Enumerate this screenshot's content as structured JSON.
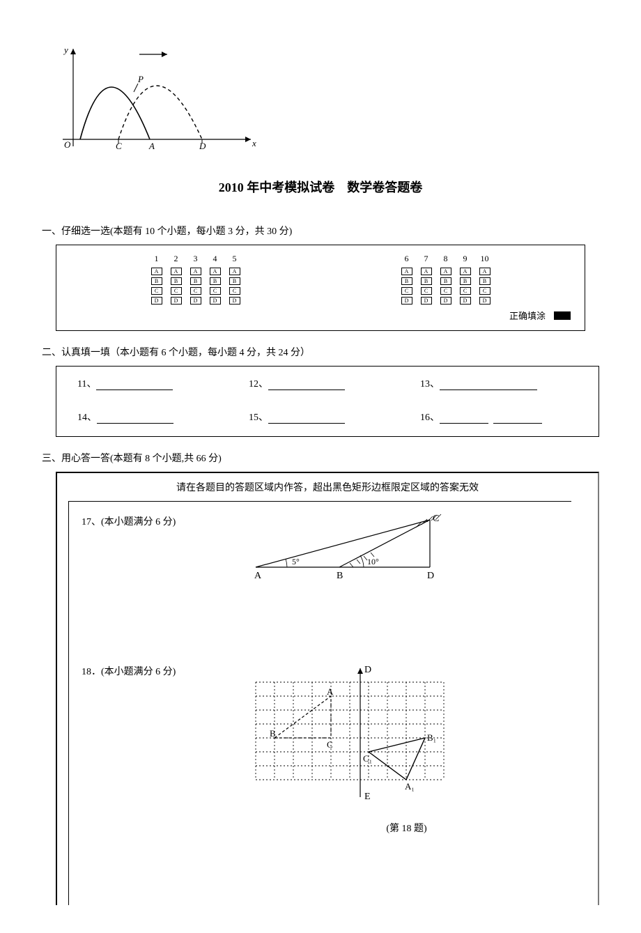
{
  "graph": {
    "axis_label_x": "x",
    "axis_label_y": "y",
    "point_O": "O",
    "point_P": "P",
    "point_C": "C",
    "point_A": "A",
    "point_D": "D",
    "axis_color": "#000000",
    "solid_curve_color": "#000000",
    "dashed_curve_color": "#000000"
  },
  "title": "2010 年中考模拟试卷　数学卷答题卷",
  "section1": {
    "header": "一、仔细选一选(本题有 10 个小题，每小题 3 分，共 30 分)",
    "group1": [
      "1",
      "2",
      "3",
      "4",
      "5"
    ],
    "group2": [
      "6",
      "7",
      "8",
      "9",
      "10"
    ],
    "options": [
      "A",
      "B",
      "C",
      "D"
    ],
    "legend": "正确填涂"
  },
  "section2": {
    "header": "二、认真填一填（本小题有 6 个小题，每小题 4 分，共 24 分）",
    "items": [
      "11、",
      "12、",
      "13、",
      "14、",
      "15、",
      "16、"
    ]
  },
  "section3": {
    "header": "三、用心答一答(本题有 8 个小题,共 66 分)",
    "instruction": "请在各题目的答题区域内作答，超出黑色矩形边框限定区域的答案无效",
    "q17": {
      "label": "17、(本小题满分 6 分)",
      "angle1": "5°",
      "angle2": "10°",
      "pA": "A",
      "pB": "B",
      "pC": "C",
      "pD": "D"
    },
    "q18": {
      "label": "18．(本小题满分 6 分)",
      "pA": "A",
      "pB": "B",
      "pC": "C",
      "pA1": "A₁",
      "pB1": "B₁",
      "pC1": "C₁",
      "pD": "D",
      "pE": "E",
      "caption": "(第 18 题)"
    }
  }
}
